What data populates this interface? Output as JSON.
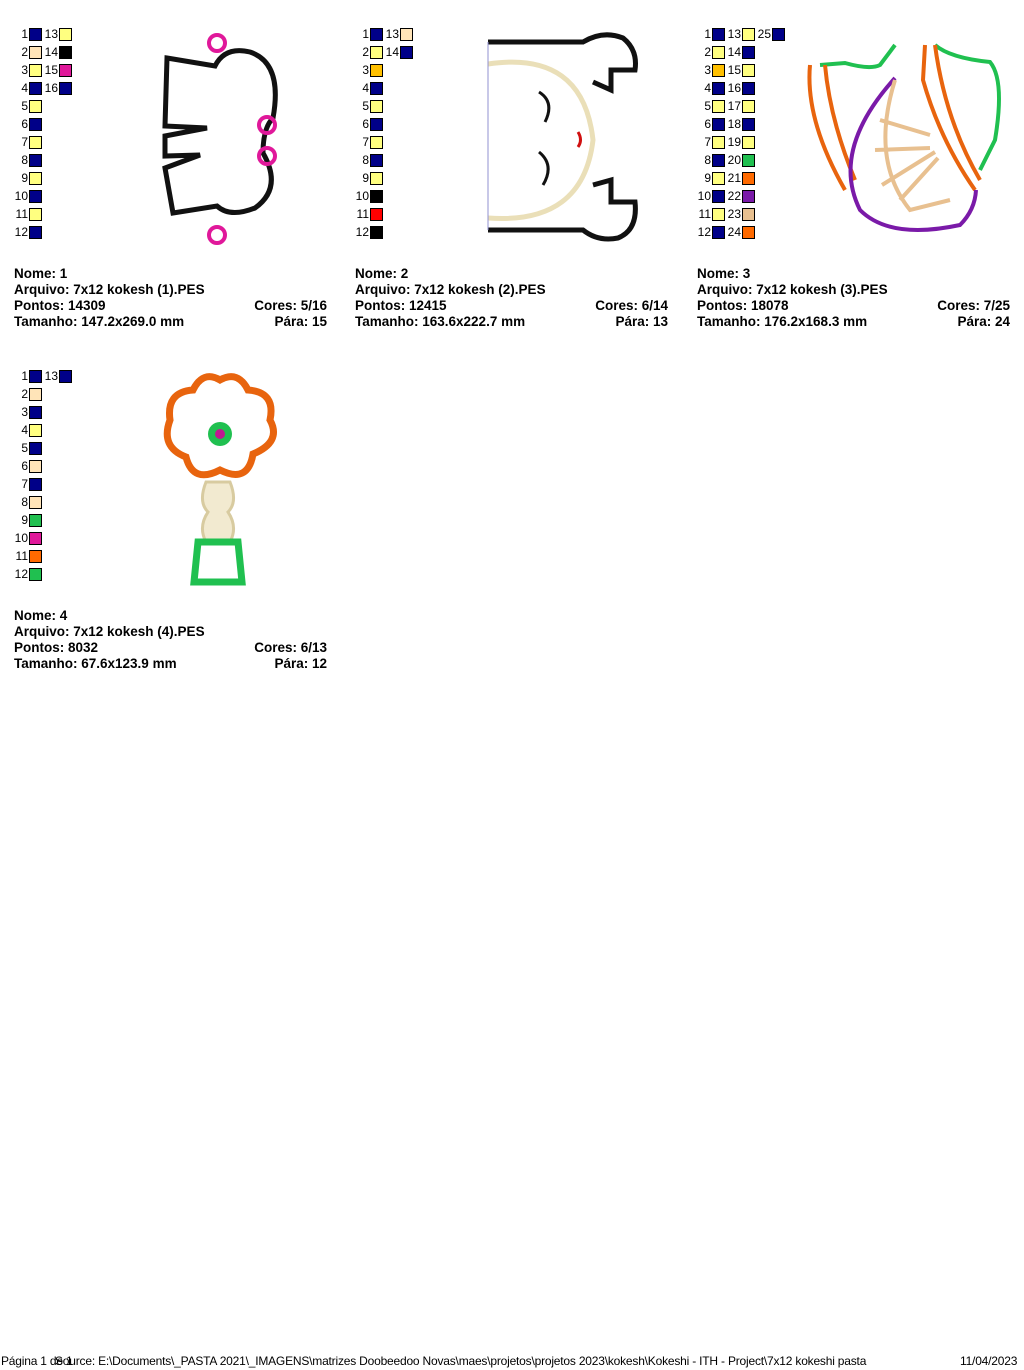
{
  "labels": {
    "name": "Nome:",
    "file": "Arquivo:",
    "points": "Pontos:",
    "colors": "Cores:",
    "size": "Tamanho:",
    "stops": "Pára:"
  },
  "palette": {
    "navy": "#000088",
    "yellow": "#ffff80",
    "beige": "#ffe4b8",
    "black": "#000000",
    "magenta": "#e0189a",
    "gold": "#ffc000",
    "red": "#ff0000",
    "green": "#20c050",
    "orange": "#ff6a00",
    "purple": "#7a1aa8",
    "tan": "#e8c090"
  },
  "designs": [
    {
      "name": "1",
      "file": "7x12 kokesh (1).PES",
      "points": "14309",
      "colors": "5/16",
      "size": "147.2x269.0 mm",
      "stops": "15",
      "swatches": [
        [
          "navy",
          "beige",
          "yellow",
          "navy",
          "yellow",
          "navy",
          "yellow",
          "navy",
          "yellow",
          "navy",
          "yellow",
          "navy"
        ],
        [
          "yellow",
          "black",
          "magenta",
          "navy"
        ]
      ]
    },
    {
      "name": "2",
      "file": "7x12 kokesh (2).PES",
      "points": "12415",
      "colors": "6/14",
      "size": "163.6x222.7 mm",
      "stops": "13",
      "swatches": [
        [
          "navy",
          "yellow",
          "gold",
          "navy",
          "yellow",
          "navy",
          "yellow",
          "navy",
          "yellow",
          "black",
          "red",
          "black"
        ],
        [
          "beige",
          "navy"
        ]
      ]
    },
    {
      "name": "3",
      "file": "7x12 kokesh (3).PES",
      "points": "18078",
      "colors": "7/25",
      "size": "176.2x168.3 mm",
      "stops": "24",
      "swatches": [
        [
          "navy",
          "yellow",
          "gold",
          "navy",
          "yellow",
          "navy",
          "yellow",
          "navy",
          "yellow",
          "navy",
          "yellow",
          "navy"
        ],
        [
          "yellow",
          "navy",
          "yellow",
          "navy",
          "yellow",
          "navy",
          "yellow",
          "green",
          "orange",
          "purple",
          "tan",
          "orange"
        ],
        [
          "navy"
        ]
      ]
    },
    {
      "name": "4",
      "file": "7x12 kokesh (4).PES",
      "points": "8032",
      "colors": "6/13",
      "size": "67.6x123.9 mm",
      "stops": "12",
      "swatches": [
        [
          "navy",
          "beige",
          "navy",
          "yellow",
          "navy",
          "beige",
          "navy",
          "beige",
          "green",
          "magenta",
          "orange",
          "green"
        ],
        [
          "navy"
        ]
      ]
    }
  ],
  "footer": {
    "page": "Página 1 de 1",
    "source": "Source: E:\\Documents\\_PASTA 2021\\_IMAGENS\\matrizes Doobeedoo Novas\\maes\\projetos\\projetos 2023\\kokesh\\Kokeshi - ITH - Project\\7x12 kokeshi pasta",
    "date": "11/04/2023"
  }
}
